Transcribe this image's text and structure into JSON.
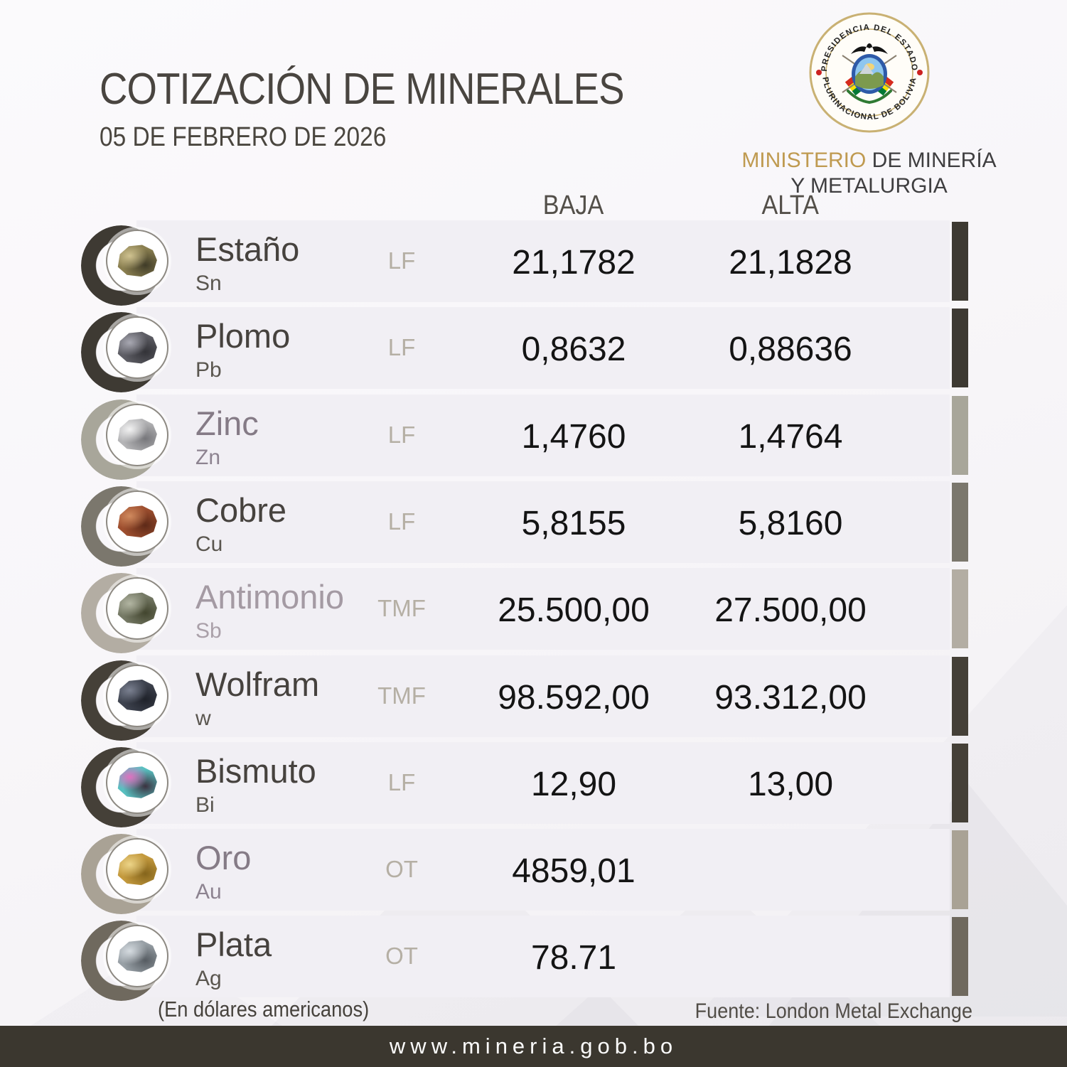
{
  "header": {
    "title": "COTIZACIÓN DE MINERALES",
    "date": "05 DE FEBRERO DE 2026"
  },
  "logo": {
    "seal_top": "PRESIDENCIA DEL ESTADO",
    "seal_bottom": "PLURINACIONAL DE BOLIVIA",
    "ministry_accent": "MINISTERIO",
    "ministry_rest": " DE MINERÍA",
    "ministry_line2": "Y METALURGIA",
    "accent_color": "#bf9a50"
  },
  "table": {
    "col_low": "BAJA",
    "col_high": "ALTA",
    "rows": [
      {
        "name": "Estaño",
        "symbol": "Sn",
        "unit": "LF",
        "low": "21,1782",
        "high": "21,1828",
        "accent": "#3e3a33",
        "tone": "dark",
        "photo": [
          "#cfc290",
          "#8a7f50",
          "#403c28"
        ]
      },
      {
        "name": "Plomo",
        "symbol": "Pb",
        "unit": "LF",
        "low": "0,8632",
        "high": "0,88636",
        "accent": "#3e3a33",
        "tone": "dark",
        "photo": [
          "#a8a8b2",
          "#5f5f66",
          "#333338"
        ]
      },
      {
        "name": "Zinc",
        "symbol": "Zn",
        "unit": "LF",
        "low": "1,4760",
        "high": "1,4764",
        "accent": "#a8a69a",
        "tone": "purple",
        "photo": [
          "#f2f2f2",
          "#b4b4b6",
          "#77777b"
        ]
      },
      {
        "name": "Cobre",
        "symbol": "Cu",
        "unit": "LF",
        "low": "5,8155",
        "high": "5,8160",
        "accent": "#7b776d",
        "tone": "dark",
        "photo": [
          "#d08a5e",
          "#9e4f2f",
          "#5e2a18"
        ]
      },
      {
        "name": "Antimonio",
        "symbol": "Sb",
        "unit": "TMF",
        "low": "25.500,00",
        "high": "27.500,00",
        "accent": "#b3ada3",
        "tone": "light",
        "photo": [
          "#b2b5a2",
          "#767a66",
          "#43462f"
        ]
      },
      {
        "name": "Wolfram",
        "symbol": "w",
        "unit": "TMF",
        "low": "98.592,00",
        "high": "93.312,00",
        "accent": "#454038",
        "tone": "dark",
        "photo": [
          "#7a8090",
          "#3f4450",
          "#1f222a"
        ]
      },
      {
        "name": "Bismuto",
        "symbol": "Bi",
        "unit": "LF",
        "low": "12,90",
        "high": "13,00",
        "accent": "#454038",
        "tone": "dark",
        "photo": [
          "#e070c0",
          "#58c0c0",
          "#3c3240"
        ]
      },
      {
        "name": "Oro",
        "symbol": "Au",
        "unit": "OT",
        "low": "4859,01",
        "high": "",
        "accent": "#a9a295",
        "tone": "purple",
        "photo": [
          "#ecd488",
          "#c49a3e",
          "#85651c"
        ]
      },
      {
        "name": "Plata",
        "symbol": "Ag",
        "unit": "OT",
        "low": "78.71",
        "high": "",
        "accent": "#6f695e",
        "tone": "dark",
        "photo": [
          "#d5dbe0",
          "#98a0a6",
          "#565c62"
        ]
      }
    ]
  },
  "footer": {
    "note": "(En dólares americanos)",
    "source": "Fuente: London Metal Exchange",
    "website": "www.mineria.gob.bo",
    "bar_color": "#3b372f"
  },
  "colors": {
    "page_bg": "#f7f5f8",
    "row_bg": "#f1eff4",
    "title": "#494540",
    "column_header": "#534f49",
    "value": "#141414",
    "unit": "#b5afa4",
    "seal_gold": "#c9b173",
    "seal_dot_red": "#cc2222"
  }
}
